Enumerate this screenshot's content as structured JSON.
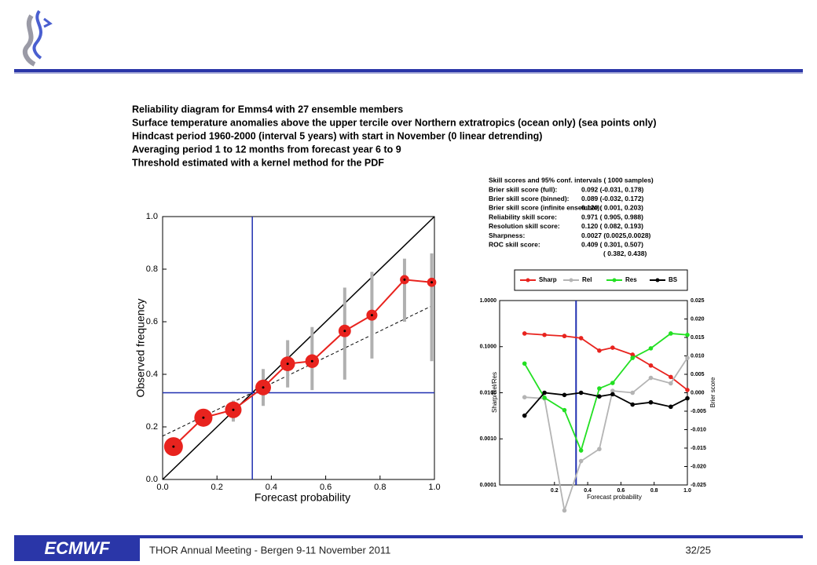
{
  "title_lines": [
    "Reliability diagram for Emms4 with 27 ensemble members",
    "Surface temperature anomalies above the upper tercile over Northern extratropics (ocean only) (sea points only)",
    "Hindcast period 1960-2000 (interval 5 years) with start in November (0 linear detrending)",
    "Averaging period 1 to 12 months from forecast year 6 to 9",
    "Threshold estimated with a kernel method for the PDF"
  ],
  "skill_scores": {
    "title": "Skill scores and 95% conf. intervals ( 1000 samples)",
    "rows": [
      [
        "Brier skill score (full):",
        "0.092 (-0.031, 0.178)"
      ],
      [
        "Brier skill score (binned):",
        "0.089 (-0.032, 0.172)"
      ],
      [
        "Brier skill score (infinite ensemble):",
        "0.120 ( 0.001, 0.203)"
      ],
      [
        "Reliability skill score:",
        "0.971 ( 0.905, 0.988)"
      ],
      [
        "Resolution skill score:",
        "0.120 ( 0.082, 0.193)"
      ],
      [
        "Sharpness:",
        "0.0027 (0.0025,0.0028)"
      ],
      [
        "ROC skill score:",
        "0.409 ( 0.301, 0.507)"
      ],
      [
        "( 0.382, 0.438)"
      ]
    ]
  },
  "footer": {
    "logo": "ECMWF",
    "text": "THOR Annual Meeting - Bergen  9-11 November 2011",
    "page": "32/25"
  },
  "chart_data": [
    {
      "type": "reliability",
      "x_label": "Forecast probability",
      "y_label": "Observed frequency",
      "xlim": [
        0,
        1
      ],
      "ylim": [
        0,
        1
      ],
      "xticks": [
        {
          "value": 0,
          "label": "0.0"
        },
        0.2,
        0.4,
        0.6,
        0.8,
        {
          "value": 1,
          "label": "1.0"
        }
      ],
      "yticks": [
        {
          "value": 0,
          "label": "0.0"
        },
        0.2,
        0.4,
        0.6,
        0.8,
        {
          "value": 1,
          "label": "1.0"
        }
      ],
      "climatology": 0.33,
      "climatology_color": "#1f2fb0",
      "regression_line": [
        0.165,
        0.665
      ],
      "series": [
        {
          "name": "Reliability",
          "color": "#e8231e",
          "error_color": "#b0b0b0",
          "x": [
            0.04,
            0.15,
            0.26,
            0.37,
            0.46,
            0.55,
            0.67,
            0.77,
            0.89,
            0.99
          ],
          "values": [
            0.125,
            0.235,
            0.265,
            0.35,
            0.44,
            0.45,
            0.565,
            0.625,
            0.76,
            0.75
          ],
          "sizes": [
            10,
            9,
            7,
            6,
            5,
            4,
            3,
            2,
            1,
            1
          ],
          "low": [
            0.125,
            0.235,
            0.22,
            0.28,
            0.35,
            0.34,
            0.38,
            0.46,
            0.6,
            0.45
          ],
          "high": [
            0.125,
            0.235,
            0.3,
            0.42,
            0.53,
            0.58,
            0.73,
            0.79,
            0.84,
            0.86
          ]
        }
      ]
    },
    {
      "type": "line",
      "x_label": "Forecast probability",
      "y_label": "Sharp/Rel/Res",
      "y2_label": "Brier score",
      "log_y": true,
      "xlim": [
        -0.13,
        1.0
      ],
      "ylim": [
        0.0001,
        1
      ],
      "y2lim": [
        -0.025,
        0.025
      ],
      "xticks": [
        0.2,
        0.4,
        0.6,
        0.8,
        {
          "value": 1,
          "label": "1.0"
        }
      ],
      "yticks": [
        {
          "value": 1,
          "label": "1.0000"
        },
        {
          "value": 0.1,
          "label": "0.1000"
        },
        {
          "value": 0.01,
          "label": "0.0100"
        },
        {
          "value": 0.001,
          "label": "0.0010"
        },
        {
          "value": 0.0001,
          "label": "0.0001"
        }
      ],
      "y2ticks": [
        0.025,
        {
          "value": 0.02,
          "label": "0.020"
        },
        0.015,
        {
          "value": 0.01,
          "label": "0.010"
        },
        0.005,
        {
          "value": 0,
          "label": "0.000"
        },
        -0.005,
        {
          "value": -0.01,
          "label": "-0.010"
        },
        -0.015,
        {
          "value": -0.02,
          "label": "-0.020"
        },
        -0.025
      ],
      "climatology": 0.33,
      "climatology_color": "#1f2fb0",
      "x": [
        0.02,
        0.14,
        0.26,
        0.36,
        0.47,
        0.55,
        0.67,
        0.78,
        0.9,
        1.0
      ],
      "series": [
        {
          "name": "Sharp",
          "color": "#e8231e",
          "values": [
            0.193,
            0.18,
            0.17,
            0.153,
            0.082,
            0.095,
            0.067,
            0.039,
            0.022,
            0.0115
          ]
        },
        {
          "name": "Rel",
          "color": "#b4b4b4",
          "values": [
            0.008,
            0.0075,
            2.8e-05,
            0.00033,
            0.0006,
            0.011,
            0.01,
            0.021,
            0.016,
            0.057
          ]
        },
        {
          "name": "Res",
          "color": "#22e022",
          "values": [
            0.043,
            0.0078,
            0.0042,
            0.00056,
            0.0124,
            0.0163,
            0.057,
            0.092,
            0.193,
            0.18
          ]
        },
        {
          "name": "BS",
          "color": "#000000",
          "axis": "y2",
          "values": [
            -0.0062,
            0,
            -0.0006,
            0,
            -0.001,
            -0.0004,
            -0.0032,
            -0.0026,
            -0.0038,
            -0.0015
          ]
        }
      ]
    }
  ]
}
